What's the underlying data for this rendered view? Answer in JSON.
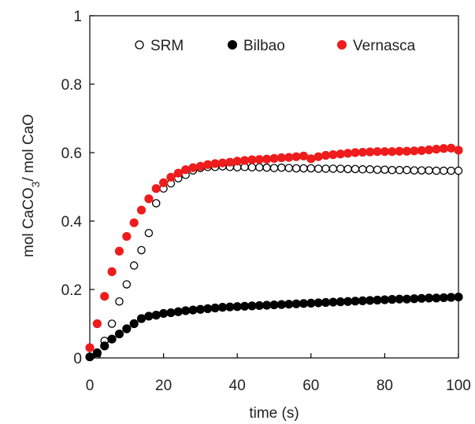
{
  "chart_data": {
    "type": "scatter",
    "title": "",
    "xlabel": "time (s)",
    "ylabel": "mol CaCO3/ mol CaO",
    "xlim": [
      0,
      100
    ],
    "ylim": [
      0,
      1
    ],
    "xticks": [
      "0",
      "20",
      "40",
      "60",
      "80",
      "100"
    ],
    "yticks": [
      "0",
      "0.2",
      "0.4",
      "0.6",
      "0.8",
      "1"
    ],
    "grid": false,
    "legend_position": "top",
    "series": [
      {
        "name": "SRM",
        "marker": "open-circle",
        "color": "#000000",
        "x": [
          0,
          2,
          4,
          6,
          8,
          10,
          12,
          14,
          16,
          18,
          20,
          22,
          24,
          26,
          28,
          30,
          32,
          34,
          36,
          38,
          40,
          42,
          44,
          46,
          48,
          50,
          52,
          54,
          56,
          58,
          60,
          62,
          64,
          66,
          68,
          70,
          72,
          74,
          76,
          78,
          80,
          82,
          84,
          86,
          88,
          90,
          92,
          94,
          96,
          98,
          100
        ],
        "y": [
          0.003,
          0.01,
          0.05,
          0.1,
          0.165,
          0.215,
          0.27,
          0.315,
          0.365,
          0.452,
          0.495,
          0.51,
          0.525,
          0.535,
          0.548,
          0.555,
          0.558,
          0.558,
          0.56,
          0.558,
          0.557,
          0.558,
          0.557,
          0.557,
          0.556,
          0.555,
          0.556,
          0.555,
          0.554,
          0.554,
          0.554,
          0.553,
          0.553,
          0.553,
          0.553,
          0.552,
          0.552,
          0.551,
          0.551,
          0.55,
          0.55,
          0.549,
          0.549,
          0.549,
          0.548,
          0.548,
          0.548,
          0.547,
          0.547,
          0.547,
          0.547
        ]
      },
      {
        "name": "Bilbao",
        "marker": "filled-circle",
        "color": "#000000",
        "x": [
          0,
          2,
          4,
          6,
          8,
          10,
          12,
          14,
          16,
          18,
          20,
          22,
          24,
          26,
          28,
          30,
          32,
          34,
          36,
          38,
          40,
          42,
          44,
          46,
          48,
          50,
          52,
          54,
          56,
          58,
          60,
          62,
          64,
          66,
          68,
          70,
          72,
          74,
          76,
          78,
          80,
          82,
          84,
          86,
          88,
          90,
          92,
          94,
          96,
          98,
          100
        ],
        "y": [
          0.003,
          0.015,
          0.035,
          0.055,
          0.07,
          0.085,
          0.1,
          0.115,
          0.122,
          0.125,
          0.13,
          0.132,
          0.135,
          0.138,
          0.14,
          0.142,
          0.144,
          0.146,
          0.148,
          0.149,
          0.15,
          0.151,
          0.152,
          0.153,
          0.154,
          0.155,
          0.156,
          0.157,
          0.158,
          0.159,
          0.16,
          0.161,
          0.162,
          0.163,
          0.164,
          0.165,
          0.166,
          0.167,
          0.168,
          0.169,
          0.17,
          0.171,
          0.172,
          0.172,
          0.173,
          0.174,
          0.175,
          0.175,
          0.176,
          0.177,
          0.178
        ]
      },
      {
        "name": "Vernasca",
        "marker": "filled-circle",
        "color": "#ee1c1c",
        "x": [
          0,
          2,
          4,
          6,
          8,
          10,
          12,
          14,
          16,
          18,
          20,
          22,
          24,
          26,
          28,
          30,
          32,
          34,
          36,
          38,
          40,
          42,
          44,
          46,
          48,
          50,
          52,
          54,
          56,
          58,
          60,
          62,
          64,
          66,
          68,
          70,
          72,
          74,
          76,
          78,
          80,
          82,
          84,
          86,
          88,
          90,
          92,
          94,
          96,
          98,
          100
        ],
        "y": [
          0.03,
          0.1,
          0.18,
          0.252,
          0.312,
          0.355,
          0.395,
          0.432,
          0.465,
          0.495,
          0.512,
          0.528,
          0.54,
          0.55,
          0.556,
          0.56,
          0.565,
          0.568,
          0.57,
          0.572,
          0.575,
          0.577,
          0.579,
          0.58,
          0.581,
          0.583,
          0.585,
          0.586,
          0.588,
          0.59,
          0.582,
          0.588,
          0.592,
          0.594,
          0.596,
          0.598,
          0.6,
          0.601,
          0.602,
          0.603,
          0.603,
          0.603,
          0.604,
          0.604,
          0.605,
          0.606,
          0.608,
          0.61,
          0.612,
          0.613,
          0.607
        ]
      }
    ]
  }
}
